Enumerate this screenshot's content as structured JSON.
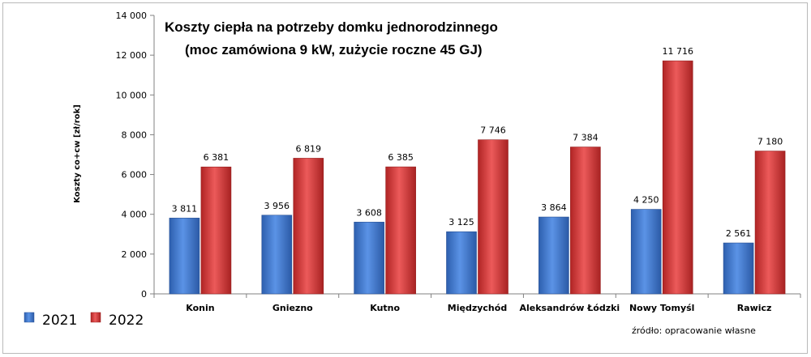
{
  "chart_data": {
    "type": "bar",
    "title_line1": "Koszty ciepła na potrzeby domku jednorodzinnego",
    "title_line2": "(moc zamówiona 9 kW, zużycie roczne 45 GJ)",
    "ylabel": "Koszty co+cw [zł/rok]",
    "xlabel": "",
    "ylim": [
      0,
      14000
    ],
    "yticks": [
      0,
      2000,
      4000,
      6000,
      8000,
      10000,
      12000,
      14000
    ],
    "ytick_labels": [
      "0",
      "2 000",
      "4 000",
      "6 000",
      "8 000",
      "10 000",
      "12 000",
      "14 000"
    ],
    "categories": [
      "Konin",
      "Gniezno",
      "Kutno",
      "Międzychód",
      "Aleksandrów Łódzki",
      "Nowy Tomyśl",
      "Rawicz"
    ],
    "series": [
      {
        "name": "2021",
        "color": "#3f78cf",
        "values": [
          3811,
          3956,
          3608,
          3125,
          3864,
          4250,
          2561
        ],
        "labels": [
          "3 811",
          "3 956",
          "3 608",
          "3 125",
          "3 864",
          "4 250",
          "2 561"
        ]
      },
      {
        "name": "2022",
        "color": "#d23a3a",
        "values": [
          6381,
          6819,
          6385,
          7746,
          7384,
          11716,
          7180
        ],
        "labels": [
          "6 381",
          "6 819",
          "6 385",
          "7 746",
          "7 384",
          "11 716",
          "7 180"
        ]
      }
    ],
    "grid": false,
    "legend": "bottom-left",
    "source_note": "źródło: opracowanie własne"
  }
}
